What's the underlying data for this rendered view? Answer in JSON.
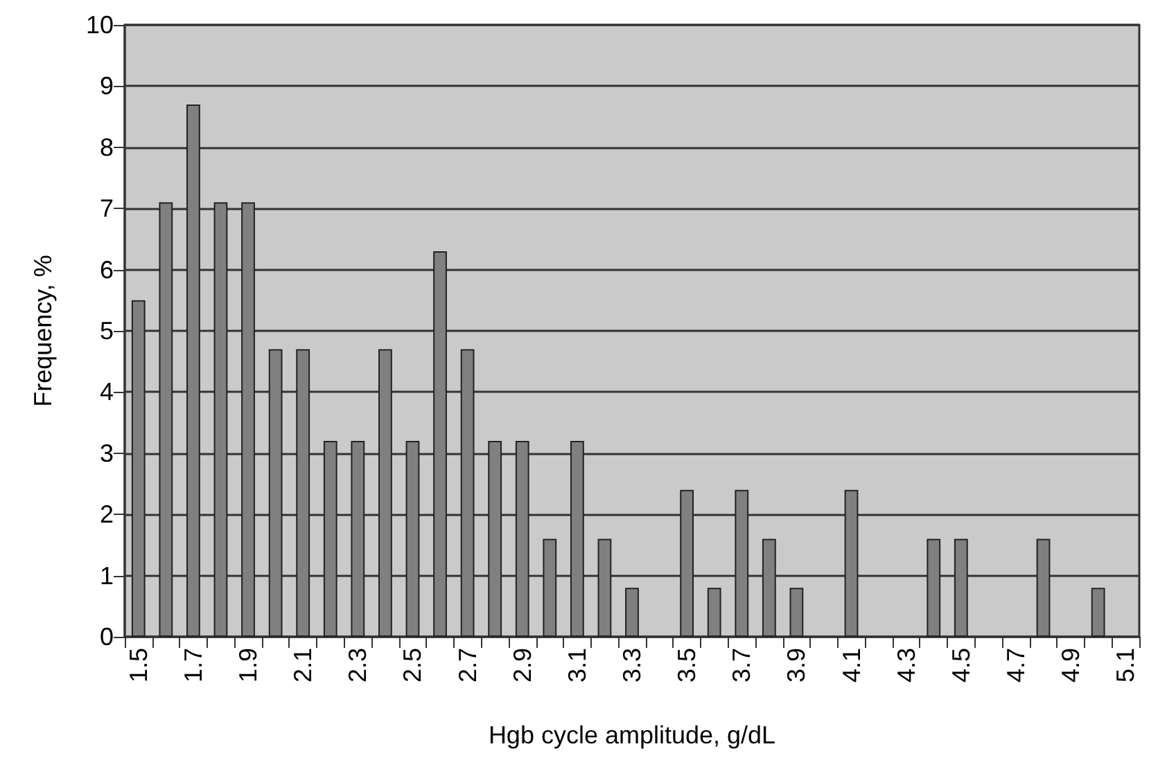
{
  "chart_data": {
    "type": "bar",
    "xlabel": "Hgb cycle amplitude, g/dL",
    "ylabel": "Frequency, %",
    "categories": [
      "1.5",
      null,
      "1.7",
      null,
      "1.9",
      null,
      "2.1",
      null,
      "2.3",
      null,
      "2.5",
      null,
      "2.7",
      null,
      "2.9",
      null,
      "3.1",
      null,
      "3.3",
      null,
      "3.5",
      null,
      "3.7",
      null,
      "3.9",
      null,
      "4.1",
      null,
      "4.3",
      null,
      "4.5",
      null,
      "4.7",
      null,
      "4.9",
      null,
      "5.1"
    ],
    "values": [
      5.5,
      7.1,
      8.7,
      7.1,
      7.1,
      4.7,
      4.7,
      3.2,
      3.2,
      4.7,
      3.2,
      6.3,
      4.7,
      3.2,
      3.2,
      1.6,
      3.2,
      1.6,
      0.8,
      0,
      2.4,
      0.8,
      2.4,
      1.6,
      0.8,
      0,
      2.4,
      0,
      0,
      1.6,
      1.6,
      0,
      0,
      1.6,
      0,
      0.8,
      0
    ],
    "color": "#808080",
    "ylim": [
      0,
      10
    ],
    "yticks": [
      0,
      1,
      2,
      3,
      4,
      5,
      6,
      7,
      8,
      9,
      10
    ],
    "grid": "y"
  }
}
